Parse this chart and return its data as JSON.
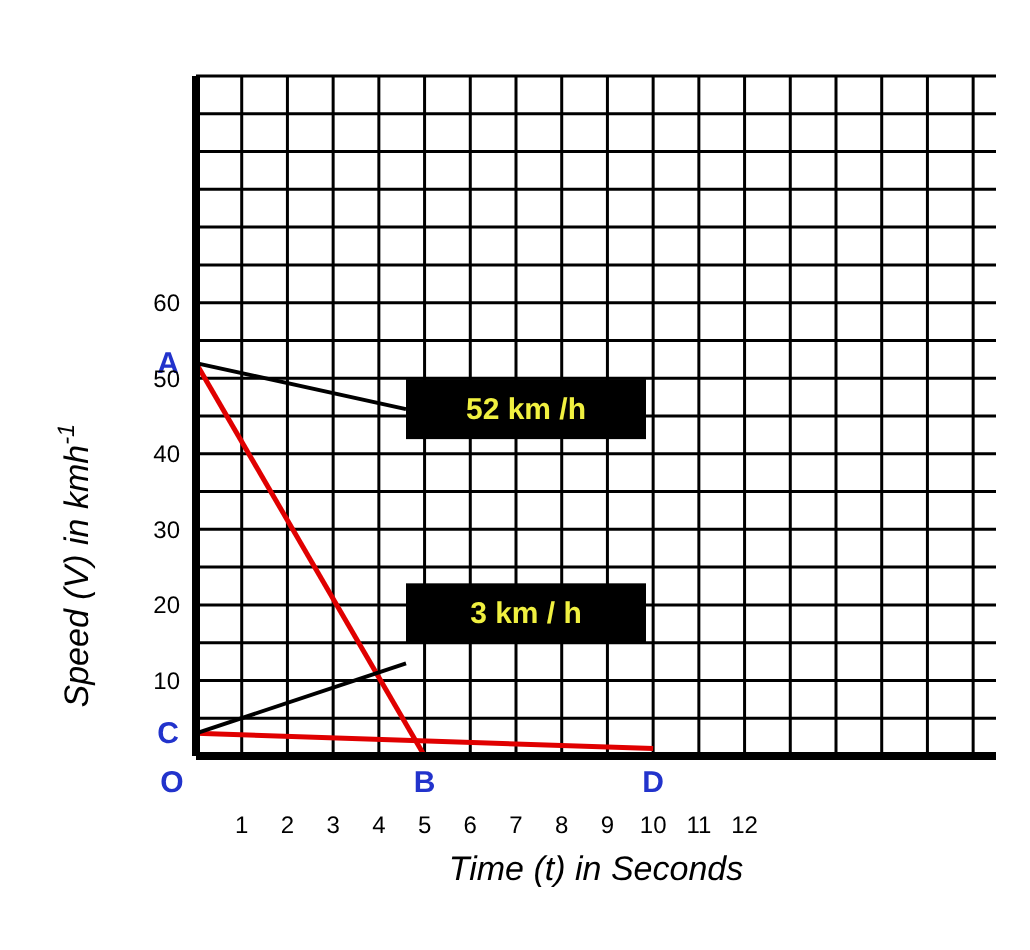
{
  "chart_data": {
    "type": "line",
    "xlabel": "Time (t) in Seconds",
    "ylabel": "Speed (V) in kmh$^{-1}$",
    "series": [
      {
        "color": "#e00000",
        "x": [
          0,
          5
        ],
        "values": [
          52,
          0
        ]
      },
      {
        "color": "#e00000",
        "x": [
          0,
          10
        ],
        "values": [
          3,
          1
        ]
      }
    ],
    "xlim": [
      0,
      17.5
    ],
    "xticks": [
      {
        "value": 0,
        "label": null
      },
      1,
      2,
      3,
      4,
      5,
      6,
      7,
      8,
      9,
      10,
      11,
      12,
      {
        "value": 13,
        "label": null
      },
      {
        "value": 14,
        "label": null
      },
      {
        "value": 15,
        "label": null
      },
      {
        "value": 16,
        "label": null
      },
      {
        "value": 17,
        "label": null
      }
    ],
    "ylim": [
      0,
      90
    ],
    "yticks": [
      {
        "value": 0,
        "label": null
      },
      {
        "value": 5,
        "label": null
      },
      10,
      {
        "value": 15,
        "label": null
      },
      20,
      {
        "value": 25,
        "label": null
      },
      30,
      {
        "value": 35,
        "label": null
      },
      40,
      {
        "value": 45,
        "label": null
      },
      50,
      {
        "value": 55,
        "label": null
      },
      60,
      {
        "value": 65,
        "label": null
      },
      {
        "value": 70,
        "label": null
      },
      {
        "value": 75,
        "label": null
      },
      {
        "value": 80,
        "label": null
      },
      {
        "value": 85,
        "label": null
      },
      {
        "value": 90,
        "label": null
      }
    ],
    "grid": true,
    "marker": "none",
    "line_style": "solid",
    "annotations": [
      {
        "text": "A",
        "x": 0,
        "y": 52
      },
      {
        "text": "B",
        "x": 5,
        "y": 0
      },
      {
        "text": "C",
        "x": 0,
        "y": 3
      },
      {
        "text": "D",
        "x": 10,
        "y": 0
      },
      "O",
      "52 km /h",
      "3 km / h"
    ]
  }
}
